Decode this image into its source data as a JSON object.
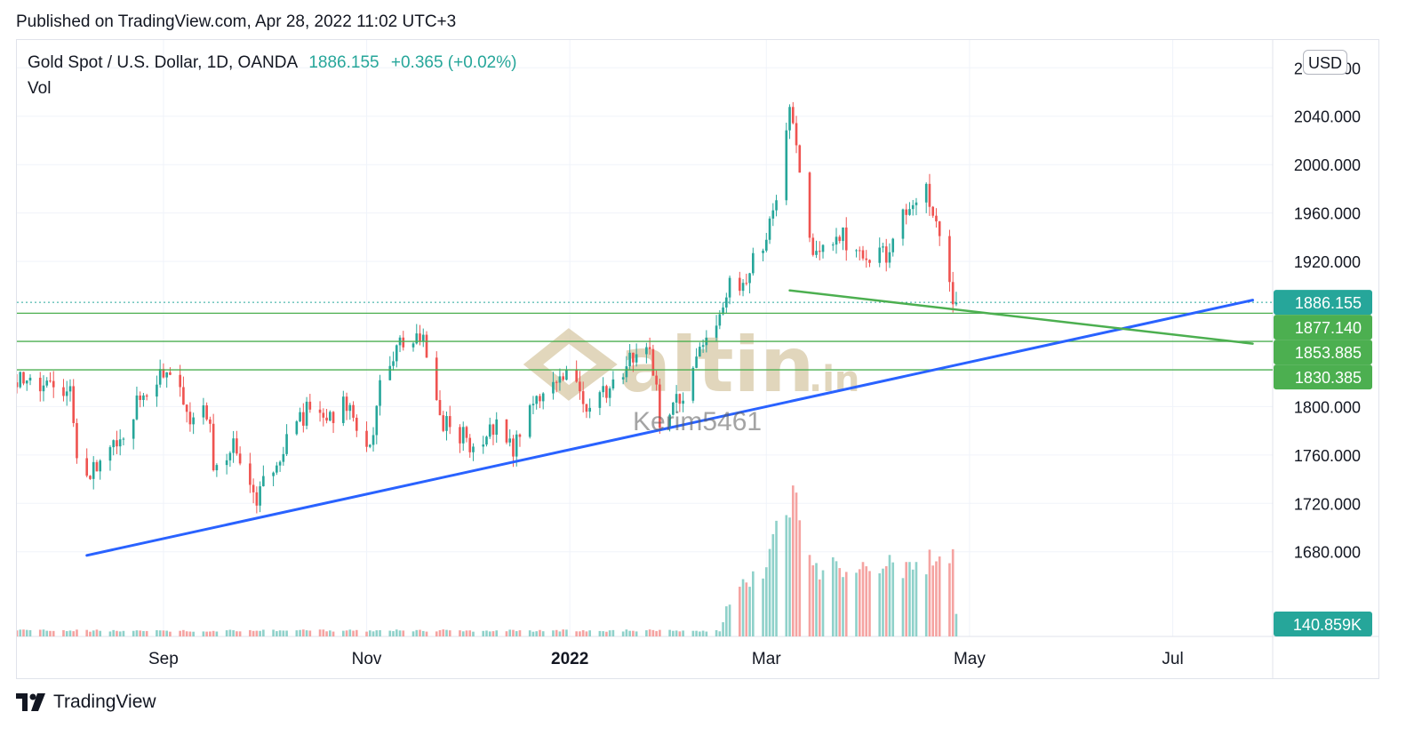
{
  "header": {
    "published": "Published on TradingView.com, Apr 28, 2022 11:02 UTC+3"
  },
  "legend": {
    "symbol": "Gold Spot / U.S. Dollar, 1D, OANDA",
    "price": "1886.155",
    "change": "+0.365 (+0.02%)",
    "vol_label": "Vol"
  },
  "currency_button": "USD",
  "footer": {
    "brand": "TradingView"
  },
  "watermark": {
    "logo_text": "altin",
    "logo_suffix": ".in",
    "author": "Kerim5461"
  },
  "colors": {
    "up": "#26a69a",
    "down": "#ef5350",
    "trend_blue": "#2962ff",
    "level_green": "#4caf50",
    "grid": "#f0f3fa",
    "watermark": "#d8c9a6"
  },
  "chart_data": {
    "type": "candlestick",
    "symbol": "XAUUSD",
    "timeframe": "1D",
    "y_ticks": [
      "2080.000",
      "2040.000",
      "2000.000",
      "1960.000",
      "1920.000",
      "1800.000",
      "1760.000",
      "1720.000",
      "1680.000"
    ],
    "ylim": [
      1610,
      2103
    ],
    "x_ticks": [
      {
        "label": "Sep",
        "date": "2021-09-01",
        "bold": false
      },
      {
        "label": "Nov",
        "date": "2021-11-01",
        "bold": false
      },
      {
        "label": "2022",
        "date": "2022-01-01",
        "bold": true
      },
      {
        "label": "Mar",
        "date": "2022-03-01",
        "bold": false
      },
      {
        "label": "May",
        "date": "2022-05-01",
        "bold": false
      },
      {
        "label": "Jul",
        "date": "2022-07-01",
        "bold": false
      }
    ],
    "xlim": [
      "2021-07-19",
      "2022-07-31"
    ],
    "last_price": {
      "value": 1886.155,
      "label": "1886.155"
    },
    "levels": [
      {
        "value": 1877.14,
        "label": "1877.140"
      },
      {
        "value": 1853.885,
        "label": "1853.885"
      },
      {
        "value": 1830.385,
        "label": "1830.385"
      }
    ],
    "trendlines": [
      {
        "name": "support",
        "color": "blue",
        "points": [
          [
            "2021-08-09",
            1677
          ],
          [
            "2022-07-25",
            1888
          ]
        ]
      },
      {
        "name": "neckline",
        "color": "green",
        "points": [
          [
            "2022-03-08",
            1896
          ],
          [
            "2022-07-25",
            1852
          ]
        ]
      }
    ],
    "volume_last_label": "140.859K",
    "anchors": [
      [
        "2021-07-19",
        1825
      ],
      [
        "2021-07-30",
        1813
      ],
      [
        "2021-08-04",
        1815
      ],
      [
        "2021-08-06",
        1763
      ],
      [
        "2021-08-09",
        1745
      ],
      [
        "2021-08-12",
        1752
      ],
      [
        "2021-08-20",
        1781
      ],
      [
        "2021-08-27",
        1817
      ],
      [
        "2021-09-03",
        1828
      ],
      [
        "2021-09-09",
        1792
      ],
      [
        "2021-09-15",
        1793
      ],
      [
        "2021-09-16",
        1755
      ],
      [
        "2021-09-22",
        1768
      ],
      [
        "2021-09-29",
        1726
      ],
      [
        "2021-10-06",
        1762
      ],
      [
        "2021-10-14",
        1796
      ],
      [
        "2021-10-20",
        1783
      ],
      [
        "2021-10-25",
        1807
      ],
      [
        "2021-10-29",
        1782
      ],
      [
        "2021-11-03",
        1770
      ],
      [
        "2021-11-05",
        1818
      ],
      [
        "2021-11-10",
        1850
      ],
      [
        "2021-11-16",
        1862
      ],
      [
        "2021-11-19",
        1846
      ],
      [
        "2021-11-23",
        1789
      ],
      [
        "2021-11-26",
        1786
      ],
      [
        "2021-12-02",
        1769
      ],
      [
        "2021-12-10",
        1782
      ],
      [
        "2021-12-15",
        1764
      ],
      [
        "2021-12-20",
        1798
      ],
      [
        "2021-12-31",
        1828
      ],
      [
        "2022-01-07",
        1797
      ],
      [
        "2022-01-14",
        1817
      ],
      [
        "2022-01-19",
        1843
      ],
      [
        "2022-01-25",
        1848
      ],
      [
        "2022-01-28",
        1791
      ],
      [
        "2022-02-04",
        1807
      ],
      [
        "2022-02-11",
        1859
      ],
      [
        "2022-02-18",
        1898
      ],
      [
        "2022-02-23",
        1908
      ],
      [
        "2022-03-01",
        1943
      ],
      [
        "2022-03-04",
        1966
      ],
      [
        "2022-03-08",
        2050
      ],
      [
        "2022-03-11",
        1988
      ],
      [
        "2022-03-15",
        1918
      ],
      [
        "2022-03-21",
        1935
      ],
      [
        "2022-03-23",
        1944
      ],
      [
        "2022-03-28",
        1922
      ],
      [
        "2022-04-01",
        1924
      ],
      [
        "2022-04-06",
        1925
      ],
      [
        "2022-04-12",
        1966
      ],
      [
        "2022-04-18",
        1978
      ],
      [
        "2022-04-21",
        1951
      ],
      [
        "2022-04-22",
        1932
      ],
      [
        "2022-04-25",
        1897
      ],
      [
        "2022-04-27",
        1886
      ]
    ],
    "volume_anchors": [
      [
        "2021-07-19",
        0.02
      ],
      [
        "2022-02-15",
        0.02
      ],
      [
        "2022-02-18",
        0.13
      ],
      [
        "2022-02-25",
        0.2
      ],
      [
        "2022-03-01",
        0.25
      ],
      [
        "2022-03-08",
        0.5
      ],
      [
        "2022-03-14",
        0.25
      ],
      [
        "2022-03-17",
        0.22
      ],
      [
        "2022-03-31",
        0.26
      ],
      [
        "2022-04-14",
        0.23
      ],
      [
        "2022-04-26",
        0.27
      ],
      [
        "2022-04-27",
        0.07
      ]
    ]
  }
}
